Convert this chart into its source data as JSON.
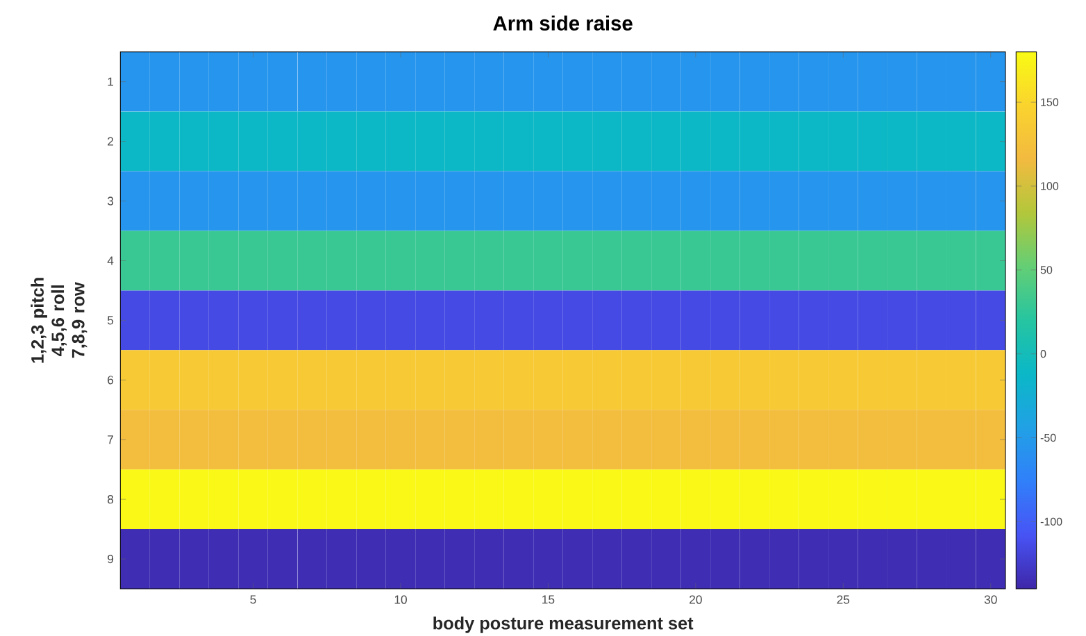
{
  "chart_data": {
    "type": "heatmap",
    "title": "Arm side raise",
    "xlabel": "body posture measurement set",
    "ylabel": "1,2,3 pitch 4,5,6 roll 7,8,9 row",
    "categories": [
      null,
      null,
      null,
      null,
      "5",
      null,
      null,
      null,
      null,
      "10",
      null,
      null,
      null,
      null,
      "15",
      null,
      null,
      null,
      null,
      "20",
      null,
      null,
      null,
      null,
      "25",
      null,
      null,
      null,
      null,
      "30"
    ],
    "y_categories": [
      "1",
      "2",
      "3",
      "4",
      "5",
      "6",
      "7",
      "8",
      "9"
    ],
    "cells": [
      [
        -55,
        -55,
        -55,
        -55,
        -55,
        -55,
        -55,
        -55,
        -55,
        -55,
        -55,
        -55,
        -55,
        -55,
        -55,
        -55,
        -55,
        -55,
        -55,
        -55,
        -55,
        -55,
        -55,
        -55,
        -55,
        -55,
        -55,
        -55,
        -55,
        -55
      ],
      [
        -10,
        -10,
        -10,
        -10,
        -10,
        -10,
        -10,
        -10,
        -10,
        -10,
        -10,
        -10,
        -10,
        -10,
        -10,
        -10,
        -10,
        -10,
        -10,
        -10,
        -10,
        -10,
        -10,
        -10,
        -10,
        -10,
        -10,
        -10,
        -10,
        -10
      ],
      [
        -55,
        -55,
        -55,
        -55,
        -55,
        -55,
        -55,
        -55,
        -55,
        -55,
        -55,
        -55,
        -55,
        -55,
        -55,
        -55,
        -55,
        -55,
        -55,
        -55,
        -55,
        -55,
        -55,
        -55,
        -55,
        -55,
        -55,
        -55,
        -55,
        -55
      ],
      [
        30,
        30,
        30,
        30,
        30,
        30,
        30,
        30,
        30,
        30,
        30,
        30,
        30,
        30,
        30,
        30,
        30,
        30,
        30,
        30,
        30,
        30,
        30,
        30,
        30,
        30,
        30,
        30,
        30,
        30
      ],
      [
        -115,
        -115,
        -115,
        -115,
        -115,
        -115,
        -115,
        -115,
        -115,
        -115,
        -115,
        -115,
        -115,
        -115,
        -115,
        -115,
        -115,
        -115,
        -115,
        -115,
        -115,
        -115,
        -115,
        -115,
        -115,
        -115,
        -115,
        -115,
        -115,
        -115
      ],
      [
        135,
        135,
        135,
        135,
        135,
        135,
        135,
        135,
        135,
        135,
        135,
        135,
        135,
        135,
        135,
        135,
        135,
        135,
        135,
        135,
        135,
        135,
        135,
        135,
        135,
        135,
        135,
        135,
        135,
        135
      ],
      [
        120,
        120,
        120,
        120,
        120,
        120,
        120,
        120,
        120,
        120,
        120,
        120,
        120,
        120,
        120,
        120,
        120,
        120,
        120,
        120,
        120,
        120,
        120,
        120,
        120,
        120,
        120,
        120,
        120,
        120
      ],
      [
        178,
        178,
        178,
        178,
        178,
        178,
        178,
        178,
        178,
        178,
        178,
        178,
        178,
        178,
        178,
        178,
        178,
        178,
        178,
        178,
        178,
        178,
        178,
        178,
        178,
        178,
        178,
        178,
        178,
        178
      ],
      [
        -135,
        -135,
        -135,
        -135,
        -135,
        -135,
        -135,
        -135,
        -135,
        -135,
        -135,
        -135,
        -135,
        -135,
        -135,
        -135,
        -135,
        -135,
        -135,
        -135,
        -135,
        -135,
        -135,
        -135,
        -135,
        -135,
        -135,
        -135,
        -135,
        -135
      ]
    ],
    "clim": [
      -140,
      180
    ],
    "cticks": [
      -100,
      -50,
      0,
      50,
      100,
      150
    ]
  }
}
